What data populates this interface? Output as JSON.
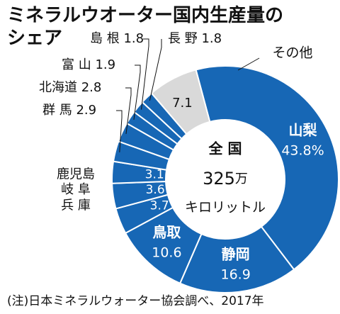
{
  "title": "ミネラルウオーター国内生産量の\nシェア",
  "center": {
    "line1": "全 国",
    "value": "325",
    "unit": "万",
    "line3": "キロリットル"
  },
  "note": "(注)日本ミネラルウォーター協会調べ、2017年",
  "colors": {
    "slice": "#1767b5",
    "other": "#d9d9d9",
    "line": "#111111"
  },
  "chart_data": {
    "type": "pie",
    "title": "ミネラルウオーター国内生産量のシェア",
    "subtitle": "全国325万キロリットル",
    "unit": "%",
    "slices": [
      {
        "name": "山梨",
        "value": 43.8,
        "label": "43.8%",
        "color": "#1767b5"
      },
      {
        "name": "静岡",
        "value": 16.9,
        "label": "16.9",
        "color": "#1767b5"
      },
      {
        "name": "鳥取",
        "value": 10.6,
        "label": "10.6",
        "color": "#1767b5"
      },
      {
        "name": "兵 庫",
        "value": 3.7,
        "label": "3.7",
        "color": "#1767b5"
      },
      {
        "name": "岐 阜",
        "value": 3.6,
        "label": "3.6",
        "color": "#1767b5"
      },
      {
        "name": "鹿児島",
        "value": 3.1,
        "label": "3.1",
        "color": "#1767b5"
      },
      {
        "name": "群 馬",
        "value": 2.9,
        "label": "2.9",
        "color": "#1767b5"
      },
      {
        "name": "北海道",
        "value": 2.8,
        "label": "2.8",
        "color": "#1767b5"
      },
      {
        "name": "富 山",
        "value": 1.9,
        "label": "1.9",
        "color": "#1767b5"
      },
      {
        "name": "島 根",
        "value": 1.8,
        "label": "1.8",
        "color": "#1767b5"
      },
      {
        "name": "長 野",
        "value": 1.8,
        "label": "1.8",
        "color": "#1767b5"
      },
      {
        "name": "その他",
        "value": 7.1,
        "label": "7.1",
        "color": "#d9d9d9"
      }
    ]
  }
}
